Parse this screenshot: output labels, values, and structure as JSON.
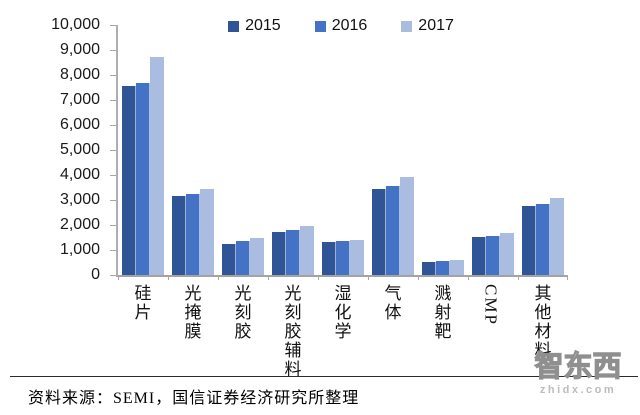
{
  "chart_data": {
    "type": "bar",
    "title": "",
    "categories": [
      "硅片",
      "光掩膜",
      "光刻胶",
      "光刻胶辅料",
      "湿化学",
      "气体",
      "溅射靶",
      "CMP",
      "其他材料"
    ],
    "series": [
      {
        "name": "2015",
        "color": "#2F5597",
        "values": [
          7570,
          3170,
          1230,
          1710,
          1310,
          3440,
          520,
          1510,
          2760
        ]
      },
      {
        "name": "2016",
        "color": "#4472C4",
        "values": [
          7670,
          3250,
          1350,
          1810,
          1370,
          3560,
          560,
          1570,
          2850
        ]
      },
      {
        "name": "2017",
        "color": "#AABCE0",
        "values": [
          8710,
          3430,
          1490,
          1970,
          1410,
          3910,
          620,
          1670,
          3080
        ]
      }
    ],
    "ylim": [
      0,
      10000
    ],
    "ytick_interval": 1000,
    "ytick_labels": [
      "10,000",
      "9,000",
      "8,000",
      "7,000",
      "6,000",
      "5,000",
      "4,000",
      "3,000",
      "2,000",
      "1,000",
      "0"
    ],
    "legend_position": "top",
    "grid": false
  },
  "source_note": "资料来源：SEMI，国信证券经济研究所整理",
  "watermark": {
    "logo": "智东西",
    "site": "zhidx.com"
  },
  "colors": {
    "series_2015": "#2F5597",
    "series_2016": "#4472C4",
    "series_2017": "#AABCE0",
    "axis": "#A6A6A6",
    "text": "#1A1A1A"
  }
}
